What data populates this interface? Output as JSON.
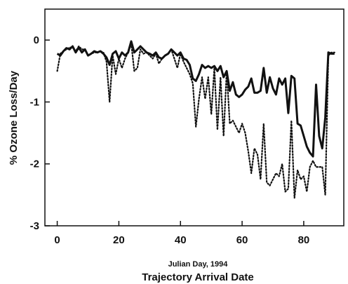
{
  "chart_data": {
    "type": "line",
    "title": "",
    "xlabel": "Trajectory Arrival Date",
    "xlabel_secondary": "Julian Day, 1994",
    "ylabel": "% Ozone Loss/Day",
    "xlim": [
      -4,
      93
    ],
    "ylim": [
      -3,
      0.5
    ],
    "xticks": [
      0,
      20,
      40,
      60,
      80
    ],
    "yticks": [
      0,
      -1,
      -2,
      -3
    ],
    "grid": false,
    "legend": "none",
    "series": [
      {
        "style": "solid",
        "color": "#111111",
        "x": [
          0,
          1,
          2,
          3,
          4,
          5,
          6,
          7,
          8,
          9,
          10,
          11,
          12,
          13,
          14,
          15,
          16,
          17,
          18,
          19,
          20,
          21,
          22,
          23,
          24,
          25,
          26,
          27,
          28,
          29,
          30,
          31,
          32,
          33,
          34,
          35,
          36,
          37,
          38,
          39,
          40,
          41,
          42,
          43,
          44,
          45,
          46,
          47,
          48,
          49,
          50,
          51,
          52,
          53,
          54,
          55,
          56,
          57,
          58,
          59,
          60,
          61,
          62,
          63,
          64,
          65,
          66,
          67,
          68,
          69,
          70,
          71,
          72,
          73,
          74,
          75,
          76,
          77,
          78,
          79,
          80,
          81,
          82,
          83,
          84,
          85,
          86,
          87,
          88,
          89,
          90
        ],
        "y": [
          -0.22,
          -0.25,
          -0.18,
          -0.13,
          -0.15,
          -0.1,
          -0.2,
          -0.12,
          -0.2,
          -0.15,
          -0.25,
          -0.22,
          -0.18,
          -0.2,
          -0.18,
          -0.22,
          -0.28,
          -0.4,
          -0.22,
          -0.18,
          -0.3,
          -0.2,
          -0.25,
          -0.2,
          -0.02,
          -0.2,
          -0.15,
          -0.1,
          -0.15,
          -0.2,
          -0.22,
          -0.25,
          -0.2,
          -0.28,
          -0.3,
          -0.25,
          -0.22,
          -0.15,
          -0.2,
          -0.25,
          -0.2,
          -0.3,
          -0.32,
          -0.4,
          -0.62,
          -0.66,
          -0.55,
          -0.4,
          -0.45,
          -0.42,
          -0.45,
          -0.42,
          -0.5,
          -0.42,
          -0.6,
          -0.5,
          -0.82,
          -0.68,
          -0.88,
          -0.92,
          -0.88,
          -0.8,
          -0.75,
          -0.62,
          -0.85,
          -0.85,
          -0.82,
          -0.45,
          -0.85,
          -0.6,
          -0.78,
          -0.88,
          -0.62,
          -0.72,
          -0.62,
          -1.18,
          -0.58,
          -0.62,
          -1.35,
          -1.38,
          -1.55,
          -1.72,
          -1.82,
          -1.88,
          -0.72,
          -1.55,
          -1.75,
          -1.25,
          -0.2,
          -0.22,
          -0.22
        ]
      },
      {
        "style": "dotted",
        "color": "#111111",
        "x": [
          0,
          1,
          2,
          3,
          4,
          5,
          6,
          7,
          8,
          9,
          10,
          11,
          12,
          13,
          14,
          15,
          16,
          17,
          18,
          19,
          20,
          21,
          22,
          23,
          24,
          25,
          26,
          27,
          28,
          29,
          30,
          31,
          32,
          33,
          34,
          35,
          36,
          37,
          38,
          39,
          40,
          41,
          42,
          43,
          44,
          45,
          46,
          47,
          48,
          49,
          50,
          51,
          52,
          53,
          54,
          55,
          56,
          57,
          58,
          59,
          60,
          61,
          62,
          63,
          64,
          65,
          66,
          67,
          68,
          69,
          70,
          71,
          72,
          73,
          74,
          75,
          76,
          77,
          78,
          79,
          80,
          81,
          82,
          83,
          84,
          85,
          86,
          87,
          88,
          89,
          90
        ],
        "y": [
          -0.5,
          -0.22,
          -0.18,
          -0.15,
          -0.12,
          -0.12,
          -0.18,
          -0.1,
          -0.15,
          -0.15,
          -0.25,
          -0.22,
          -0.2,
          -0.2,
          -0.18,
          -0.2,
          -0.35,
          -1.0,
          -0.25,
          -0.55,
          -0.3,
          -0.45,
          -0.3,
          -0.2,
          -0.05,
          -0.5,
          -0.45,
          -0.15,
          -0.22,
          -0.2,
          -0.25,
          -0.3,
          -0.22,
          -0.38,
          -0.3,
          -0.25,
          -0.22,
          -0.15,
          -0.3,
          -0.45,
          -0.22,
          -0.35,
          -0.45,
          -0.55,
          -0.7,
          -1.4,
          -0.95,
          -0.6,
          -0.95,
          -0.6,
          -1.2,
          -0.45,
          -1.45,
          -0.6,
          -1.55,
          -0.5,
          -1.35,
          -1.3,
          -1.4,
          -1.5,
          -1.35,
          -1.5,
          -1.8,
          -2.15,
          -1.75,
          -1.85,
          -2.25,
          -1.35,
          -2.3,
          -2.35,
          -2.25,
          -2.15,
          -2.2,
          -2.0,
          -2.45,
          -2.4,
          -1.3,
          -2.55,
          -2.1,
          -2.25,
          -2.2,
          -2.45,
          -2.05,
          -1.95,
          -2.05,
          -2.05,
          -2.05,
          -2.5,
          -0.25,
          -0.2,
          -0.2
        ]
      }
    ]
  }
}
